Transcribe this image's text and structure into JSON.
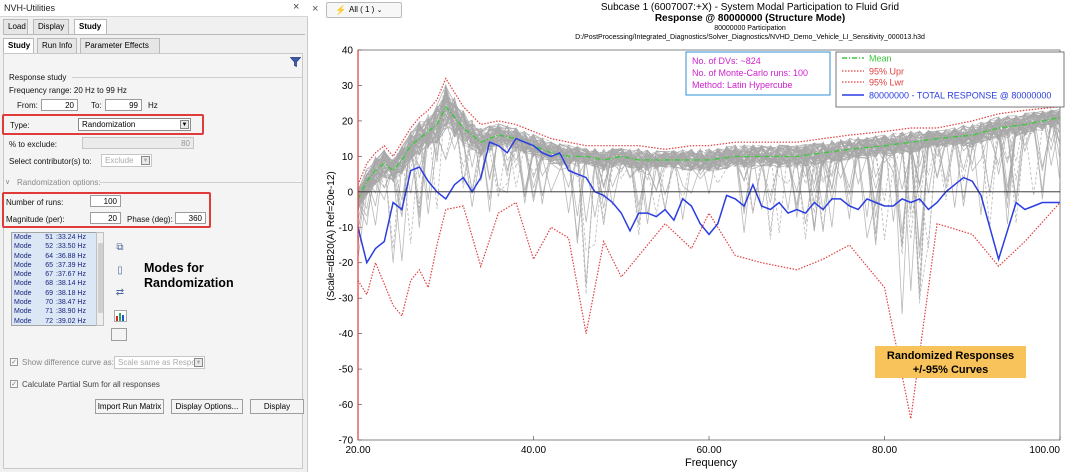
{
  "app": {
    "title": "NVH-Utilities",
    "close_symbol": "×"
  },
  "top_tabs": [
    "Load",
    "Display",
    "Study"
  ],
  "sub_tabs": [
    "Study",
    "Run Info",
    "Parameter Effects"
  ],
  "study": {
    "section_title": "Response study",
    "freq_range": "Frequency range: 20 Hz to 99 Hz",
    "from_label": "From:",
    "from_value": "20",
    "to_label": "To:",
    "to_value": "99",
    "hz_label": "Hz",
    "type_label": "Type:",
    "type_value": "Randomization",
    "exclude_label": "% to exclude:",
    "exclude_value": "80",
    "contrib_label": "Select contributor(s) to:",
    "contrib_value": "Exclude",
    "rand_options_label": "Randomization options:",
    "runs_label": "Number of runs:",
    "runs_value": "100",
    "magnitude_label": "Magnitude (per):",
    "magnitude_value": "20",
    "phase_label": "Phase (deg):",
    "phase_value": "360",
    "modes": [
      {
        "label": "Mode",
        "num": "51",
        "freq": ":33.24 Hz"
      },
      {
        "label": "Mode",
        "num": "52",
        "freq": ":33.50 Hz"
      },
      {
        "label": "Mode",
        "num": "64",
        "freq": ":36.88 Hz"
      },
      {
        "label": "Mode",
        "num": "65",
        "freq": ":37.39 Hz"
      },
      {
        "label": "Mode",
        "num": "67",
        "freq": ":37.67 Hz"
      },
      {
        "label": "Mode",
        "num": "68",
        "freq": ":38.14 Hz"
      },
      {
        "label": "Mode",
        "num": "69",
        "freq": ":38.18 Hz"
      },
      {
        "label": "Mode",
        "num": "70",
        "freq": ":38.47 Hz"
      },
      {
        "label": "Mode",
        "num": "71",
        "freq": ":38.90 Hz"
      },
      {
        "label": "Mode",
        "num": "72",
        "freq": ":39.02 Hz"
      }
    ],
    "annotation_line1": "Modes for",
    "annotation_line2": "Randomization",
    "show_diff_label": "Show difference curve as:",
    "show_diff_value": "Scale same as Respon",
    "calc_partial_label": "Calculate Partial Sum for all responses",
    "import_button": "Import Run Matrix",
    "display_options_button": "Display Options...",
    "display_button": "Display"
  },
  "toolbar": {
    "close_symbol": "×",
    "all_label": "All ( 1 )"
  },
  "header": {
    "line1": "Subcase 1 (6007007:+X) - System Modal Participation to Fluid Grid",
    "line2": "Response @ 80000000 (Structure Mode)",
    "line3": "80000000 Participation",
    "line4": "D:/PostProcessing/Integrated_Diagnostics/Solver_Diagnostics/NVHD_Demo_Vehicle_LI_Sensitivity_000013.h3d"
  },
  "colors": {
    "mean": "#3cc73c",
    "upper": "#e04040",
    "lower": "#e04040",
    "total": "#2a3de0",
    "runs": "#a8a8a8",
    "highlight": "#e03a3a",
    "info_text": "#d020d0",
    "info_border": "#2f8fd6",
    "note_bg": "#f7c35a"
  },
  "info_box": {
    "line1": "No. of DVs:  ~824",
    "line2": "No. of Monte-Carlo runs:   100",
    "line3": "Method: Latin Hypercube"
  },
  "note": {
    "line1": "Randomized Responses",
    "line2": "+/-95% Curves"
  },
  "chart_data": {
    "type": "line",
    "xlabel": "Frequency",
    "ylabel": "(Scale=dB20(A) Ref=20e-12)",
    "xlim": [
      20,
      100
    ],
    "ylim": [
      -70,
      40
    ],
    "xticks": [
      "20.00",
      "40.00",
      "60.00",
      "80.00",
      "100.00"
    ],
    "yticks": [
      "40",
      "30",
      "20",
      "10",
      "0",
      "-10",
      "-20",
      "-30",
      "-40",
      "-50",
      "-60",
      "-70"
    ],
    "legend_position": "top-right",
    "grid": false,
    "series": [
      {
        "name": "Mean",
        "style": "dash-dot",
        "color": "#3cc73c",
        "x": [
          20,
          21,
          22,
          23,
          24,
          25,
          26,
          27,
          28,
          29,
          30,
          32,
          34,
          36,
          38,
          40,
          42,
          44,
          46,
          48,
          50,
          52,
          55,
          58,
          60,
          63,
          66,
          70,
          73,
          76,
          80,
          83,
          86,
          90,
          93,
          96,
          100
        ],
        "y": [
          -2,
          3,
          6,
          8,
          6,
          9,
          13,
          15,
          17,
          19,
          24,
          18,
          14,
          16,
          15,
          13,
          11,
          10,
          10,
          9,
          10,
          9,
          9,
          9,
          9,
          10,
          10,
          10,
          11,
          12,
          13,
          14,
          15,
          16,
          18,
          19,
          21
        ]
      },
      {
        "name": "95% Upr",
        "style": "dotted",
        "color": "#e04040",
        "x": [
          20,
          21,
          22,
          23,
          24,
          25,
          26,
          27,
          28,
          29,
          30,
          32,
          34,
          36,
          38,
          40,
          42,
          44,
          46,
          48,
          50,
          52,
          55,
          58,
          60,
          63,
          66,
          70,
          73,
          76,
          80,
          83,
          86,
          90,
          93,
          96,
          100
        ],
        "y": [
          2,
          8,
          11,
          13,
          10,
          14,
          18,
          21,
          23,
          26,
          32,
          24,
          19,
          20,
          19,
          17,
          15,
          14,
          13,
          13,
          13,
          13,
          12,
          13,
          13,
          14,
          14,
          14,
          15,
          16,
          17,
          18,
          18,
          20,
          22,
          23,
          24
        ]
      },
      {
        "name": "95% Lwr",
        "style": "dotted",
        "color": "#e04040",
        "x": [
          20,
          21,
          22,
          23,
          24,
          25,
          26,
          27,
          28,
          29,
          30,
          32,
          34,
          36,
          38,
          40,
          42,
          44,
          46,
          48,
          50,
          52,
          55,
          58,
          60,
          63,
          66,
          70,
          73,
          76,
          80,
          83,
          86,
          90,
          93,
          96,
          100
        ],
        "y": [
          -25,
          -29,
          -20,
          -26,
          -32,
          -35,
          -25,
          -22,
          -27,
          -15,
          -5,
          -4,
          -21,
          -6,
          -3,
          -19,
          -10,
          -13,
          -40,
          -14,
          -24,
          -18,
          -9,
          -16,
          -6,
          -18,
          -20,
          -22,
          -19,
          -15,
          -27,
          -64,
          -9,
          -12,
          -21,
          -14,
          -3
        ]
      },
      {
        "name": "80000000 - TOTAL RESPONSE @ 80000000",
        "style": "solid",
        "color": "#2a3de0",
        "x": [
          20,
          21,
          22,
          23,
          24,
          25,
          26,
          27,
          28,
          29,
          30,
          31,
          32,
          33,
          34,
          35,
          36,
          37,
          38,
          39,
          40,
          41,
          42,
          43,
          44,
          45,
          46,
          47,
          48,
          49,
          50,
          51,
          52,
          53,
          54,
          55,
          56,
          57,
          58,
          59,
          60,
          61,
          62,
          63,
          64,
          65,
          66,
          67,
          68,
          69,
          70,
          71,
          72,
          73,
          74,
          75,
          76,
          77,
          78,
          79,
          80,
          81,
          82,
          83,
          84,
          85,
          86,
          87,
          88,
          89,
          90,
          91,
          92,
          93,
          94,
          95,
          96,
          97,
          98,
          99,
          100
        ],
        "y": [
          -10,
          -20,
          -16,
          -14,
          -3,
          -5,
          6,
          7,
          3,
          0,
          -2,
          2,
          4,
          0,
          4,
          14,
          13,
          11,
          15,
          14,
          13,
          11,
          10,
          11,
          6,
          5,
          4,
          0,
          -1,
          -3,
          -6,
          -11,
          -6,
          -6,
          -7,
          -5,
          -8,
          -2,
          -4,
          -9,
          -12,
          -9,
          -1,
          -2,
          -4,
          2,
          -4,
          -5,
          -3,
          -6,
          -5,
          -6,
          -3,
          -5,
          -2,
          -2,
          -4,
          -5,
          -2,
          -3,
          -4,
          -4,
          -2,
          -3,
          -2,
          -5,
          -3,
          0,
          2,
          4,
          3,
          -1,
          -10,
          -19,
          -11,
          -3,
          -5,
          -4,
          -3,
          -3,
          -3
        ]
      }
    ]
  }
}
